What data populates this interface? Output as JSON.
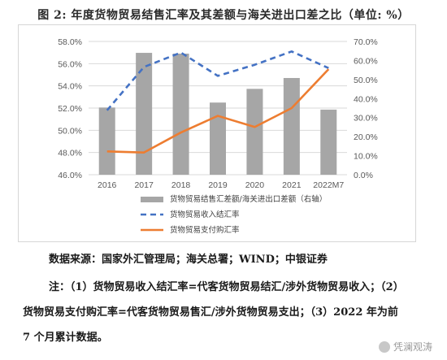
{
  "figure_title": "图 2: 年度货物贸易结售汇率及其差额与海关进出口差之比（单位: %）",
  "source_text": "数据来源：国家外汇管理局；海关总署；WIND；中银证券",
  "notes": [
    "注：（1）货物贸易收入结汇率=代客货物贸易结汇/涉外货物贸易收入；（2）",
    "货物贸易支付购汇率=代客货物贸易售汇/涉外货物贸易支出；（3）2022 年为前",
    "7 个月累计数据。"
  ],
  "watermark": "凭澜观涛",
  "colors": {
    "bar": "#a6a6a6",
    "income_line": "#4472c4",
    "payment_line": "#ed7d31",
    "grid": "#d9d9d9"
  },
  "chart_data": {
    "type": "bar+line",
    "categories": [
      "2016",
      "2017",
      "2018",
      "2019",
      "2020",
      "2021",
      "2022M7"
    ],
    "left_axis": {
      "ylim": [
        46.0,
        58.0
      ],
      "ticks": [
        "46.0%",
        "48.0%",
        "50.0%",
        "52.0%",
        "54.0%",
        "56.0%",
        "58.0%"
      ]
    },
    "right_axis": {
      "ylim": [
        0,
        70
      ],
      "ticks": [
        "0.0%",
        "10.0%",
        "20.0%",
        "30.0%",
        "40.0%",
        "50.0%",
        "60.0%",
        "70.0%"
      ]
    },
    "grid": true,
    "legend_position": "bottom",
    "series": [
      {
        "name": "货物贸易结售汇差额/海关进出口差额（右轴）",
        "type": "bar",
        "axis": "right",
        "values": [
          35.3,
          64.0,
          63.6,
          37.9,
          45.1,
          50.8,
          34.2
        ]
      },
      {
        "name": "货物贸易收入结汇率",
        "type": "line",
        "style": "dashed",
        "axis": "left",
        "values": [
          51.8,
          55.7,
          57.0,
          54.9,
          55.9,
          57.1,
          55.6
        ]
      },
      {
        "name": "货物贸易支付购汇率",
        "type": "line",
        "style": "solid",
        "axis": "left",
        "values": [
          48.1,
          48.0,
          49.8,
          51.3,
          50.3,
          52.0,
          55.5
        ]
      }
    ]
  }
}
